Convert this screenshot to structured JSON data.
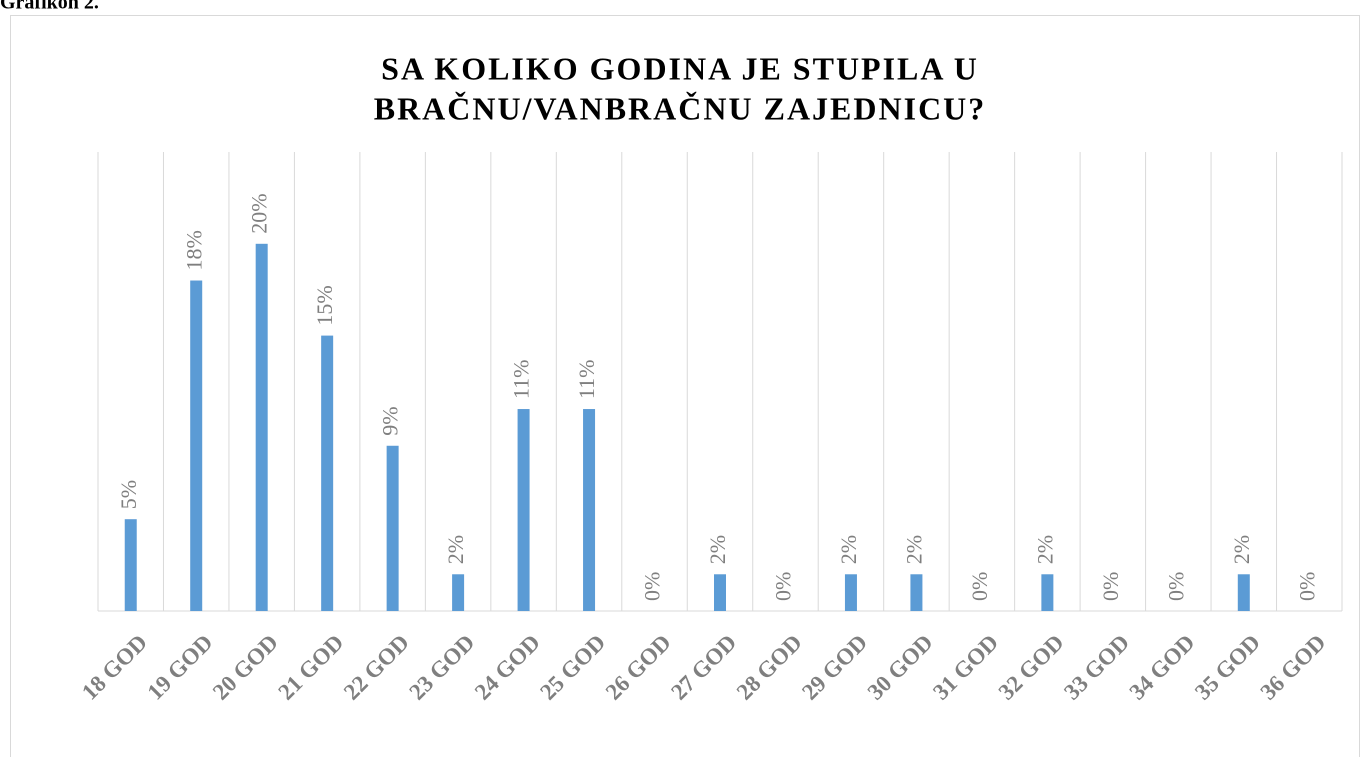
{
  "caption": "Grafikon 2.",
  "chart_data": {
    "type": "bar",
    "title": [
      "SA KOLIKO GODINA JE STUPILA U",
      "BRAČNU/VANBRAČNU ZAJEDNICU?"
    ],
    "categories": [
      "18 GOD",
      "19 GOD",
      "20 GOD",
      "21 GOD",
      "22 GOD",
      "23 GOD",
      "24 GOD",
      "25 GOD",
      "26 GOD",
      "27 GOD",
      "28 GOD",
      "29 GOD",
      "30 GOD",
      "31 GOD",
      "32 GOD",
      "33 GOD",
      "34 GOD",
      "35 GOD",
      "36 GOD"
    ],
    "values": [
      5,
      18,
      20,
      15,
      9,
      2,
      11,
      11,
      0,
      2,
      0,
      2,
      2,
      0,
      2,
      0,
      0,
      2,
      0
    ],
    "value_labels": [
      "5%",
      "18%",
      "20%",
      "15%",
      "9%",
      "2%",
      "11%",
      "11%",
      "0%",
      "2%",
      "0%",
      "2%",
      "2%",
      "0%",
      "2%",
      "0%",
      "0%",
      "2%",
      "0%"
    ],
    "color": "#5b9bd5",
    "ylim": [
      0,
      25
    ],
    "grid": true
  }
}
